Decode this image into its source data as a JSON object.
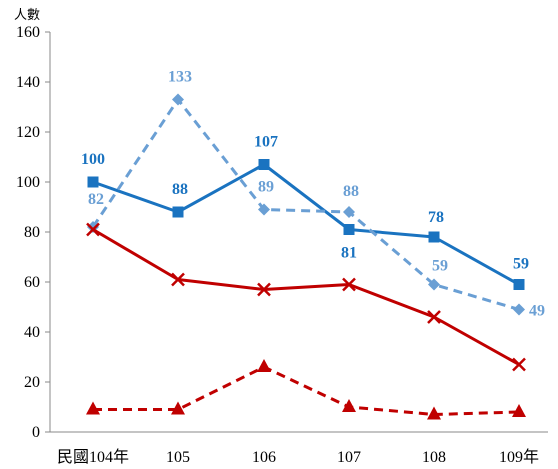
{
  "chart_data": {
    "type": "line",
    "y_unit_label": "人數",
    "categories": [
      "民國104年",
      "105",
      "106",
      "107",
      "108",
      "109年"
    ],
    "ylim": [
      0,
      160
    ],
    "yticks": [
      0,
      20,
      40,
      60,
      80,
      100,
      120,
      140,
      160
    ],
    "grid": false,
    "legend": "none",
    "series": [
      {
        "values": [
          100,
          88,
          107,
          81,
          78,
          59
        ],
        "color": "#1a73c0",
        "line_style": "solid",
        "marker": "square",
        "data_labels": [
          "100",
          "88",
          "107",
          "81",
          "78",
          "59"
        ]
      },
      {
        "values": [
          82,
          133,
          89,
          88,
          59,
          49
        ],
        "color": "#6a9fd4",
        "line_style": "dashed",
        "marker": "diamond",
        "data_labels": [
          "82",
          "133",
          "89",
          "88",
          "59",
          "49"
        ]
      },
      {
        "values": [
          81,
          61,
          57,
          59,
          46,
          27
        ],
        "color": "#c00000",
        "line_style": "solid",
        "marker": "x",
        "data_labels": []
      },
      {
        "values": [
          9,
          9,
          26,
          10,
          7,
          8
        ],
        "color": "#c00000",
        "line_style": "dashed",
        "marker": "triangle",
        "data_labels": []
      }
    ]
  }
}
